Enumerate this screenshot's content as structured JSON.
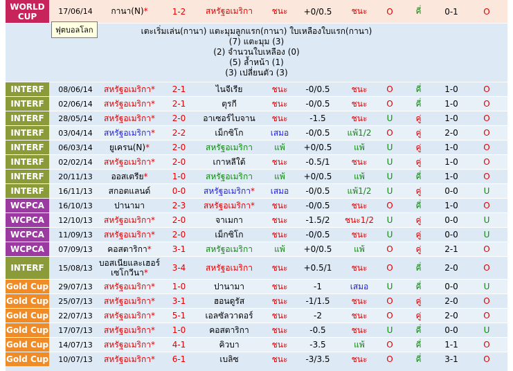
{
  "colors": {
    "world_cup": "#c8245c",
    "interf": "#8c9b3a",
    "wcpca": "#9b3aa0",
    "gold_cup": "#f08c28"
  },
  "tooltip": "ฟุตบอลโลก",
  "first": {
    "league": "WORLD CUP",
    "date": "17/06/14",
    "home": "กานา(N)",
    "score": "1-2",
    "away": "สหรัฐอเมริกา",
    "res": "ชนะ",
    "hcap": "+0/0.5",
    "hres": "ชนะ",
    "ou": "O",
    "ouw": "คี่",
    "ht": "0-1",
    "fr": "O"
  },
  "detail": [
    "เตะเริ่มเล่น(กานา)  แตะมุมลูกแรก(กานา)  ใบเหลืองใบแรก(กานา)",
    "(7) แตะมุม (3)",
    "(2) จำนวนใบเหลือง (0)",
    "(5) ล้ำหน้า (1)",
    "(3) เปลี่ยนตัว (3)"
  ],
  "rows": [
    {
      "league": "INTERF",
      "date": "08/06/14",
      "home": "สหรัฐอเมริกา",
      "home_star": "*",
      "score": "2-1",
      "away": "ไนจีเรีย",
      "res": "ชนะ",
      "hcap": "-0/0.5",
      "hres": "ชนะ",
      "ou": "O",
      "ouw": "คี่",
      "ht": "1-0",
      "fr": "O"
    },
    {
      "league": "INTERF",
      "date": "02/06/14",
      "home": "สหรัฐอเมริกา",
      "home_star": "*",
      "score": "2-1",
      "away": "ตุรกี",
      "res": "ชนะ",
      "hcap": "-0/0.5",
      "hres": "ชนะ",
      "ou": "O",
      "ouw": "คี่",
      "ht": "1-0",
      "fr": "O"
    },
    {
      "league": "INTERF",
      "date": "28/05/14",
      "home": "สหรัฐอเมริกา",
      "home_star": "*",
      "score": "2-0",
      "away": "อาเซอร์ไบจาน",
      "res": "ชนะ",
      "hcap": "-1.5",
      "hres": "ชนะ",
      "ou": "U",
      "ouw": "คู่",
      "ht": "1-0",
      "fr": "O"
    },
    {
      "league": "INTERF",
      "date": "03/04/14",
      "home": "สหรัฐอเมริกา",
      "home_star": "*",
      "score": "2-2",
      "away": "เม็กซิโก",
      "res": "เสมอ",
      "hcap": "-0/0.5",
      "hres": "แพ้1/2",
      "ou": "O",
      "ouw": "คู่",
      "ht": "2-0",
      "fr": "O"
    },
    {
      "league": "INTERF",
      "date": "06/03/14",
      "home": "ยูเครน(N)",
      "home_star": "*",
      "score": "2-0",
      "away": "สหรัฐอเมริกา",
      "res": "แพ้",
      "hcap": "+0/0.5",
      "hres": "แพ้",
      "ou": "U",
      "ouw": "คู่",
      "ht": "1-0",
      "fr": "O"
    },
    {
      "league": "INTERF",
      "date": "02/02/14",
      "home": "สหรัฐอเมริกา",
      "home_star": "*",
      "score": "2-0",
      "away": "เกาหลีใต้",
      "res": "ชนะ",
      "hcap": "-0.5/1",
      "hres": "ชนะ",
      "ou": "U",
      "ouw": "คู่",
      "ht": "1-0",
      "fr": "O"
    },
    {
      "league": "INTERF",
      "date": "20/11/13",
      "home": "ออสเตรีย",
      "home_star": "*",
      "score": "1-0",
      "away": "สหรัฐอเมริกา",
      "res": "แพ้",
      "hcap": "+0/0.5",
      "hres": "แพ้",
      "ou": "U",
      "ouw": "คี่",
      "ht": "1-0",
      "fr": "O"
    },
    {
      "league": "INTERF",
      "date": "16/11/13",
      "home": "สกอตแลนด์",
      "home_star": "",
      "score": "0-0",
      "away": "สหรัฐอเมริกา",
      "away_star": "*",
      "res": "เสมอ",
      "hcap": "-0/0.5",
      "hres": "แพ้1/2",
      "ou": "U",
      "ouw": "คู่",
      "ht": "0-0",
      "fr": "U"
    },
    {
      "league": "WCPCA",
      "date": "16/10/13",
      "home": "ปานามา",
      "home_star": "",
      "score": "2-3",
      "away": "สหรัฐอเมริกา",
      "away_star": "*",
      "res": "ชนะ",
      "hcap": "-0/0.5",
      "hres": "ชนะ",
      "ou": "O",
      "ouw": "คี่",
      "ht": "1-0",
      "fr": "O"
    },
    {
      "league": "WCPCA",
      "date": "12/10/13",
      "home": "สหรัฐอเมริกา",
      "home_star": "*",
      "score": "2-0",
      "away": "จาเมกา",
      "res": "ชนะ",
      "hcap": "-1.5/2",
      "hres": "ชนะ1/2",
      "ou": "U",
      "ouw": "คู่",
      "ht": "0-0",
      "fr": "U"
    },
    {
      "league": "WCPCA",
      "date": "11/09/13",
      "home": "สหรัฐอเมริกา",
      "home_star": "*",
      "score": "2-0",
      "away": "เม็กซิโก",
      "res": "ชนะ",
      "hcap": "-0/0.5",
      "hres": "ชนะ",
      "ou": "U",
      "ouw": "คู่",
      "ht": "0-0",
      "fr": "U"
    },
    {
      "league": "WCPCA",
      "date": "07/09/13",
      "home": "คอสตาริกา",
      "home_star": "*",
      "score": "3-1",
      "away": "สหรัฐอเมริกา",
      "res": "แพ้",
      "hcap": "+0/0.5",
      "hres": "แพ้",
      "ou": "O",
      "ouw": "คู่",
      "ht": "2-1",
      "fr": "O"
    },
    {
      "league": "INTERF",
      "date": "15/08/13",
      "home": "บอสเนียและเฮอร์เซโกวีนา",
      "home_star": "*",
      "score": "3-4",
      "away": "สหรัฐอเมริกา",
      "res": "ชนะ",
      "hcap": "+0.5/1",
      "hres": "ชนะ",
      "ou": "O",
      "ouw": "คี่",
      "ht": "2-0",
      "fr": "O",
      "tall": true
    },
    {
      "league": "Gold Cup",
      "date": "29/07/13",
      "home": "สหรัฐอเมริกา",
      "home_star": "*",
      "score": "1-0",
      "away": "ปานามา",
      "res": "ชนะ",
      "hcap": "-1",
      "hres": "เสมอ",
      "ou": "U",
      "ouw": "คี่",
      "ht": "0-0",
      "fr": "U"
    },
    {
      "league": "Gold Cup",
      "date": "25/07/13",
      "home": "สหรัฐอเมริกา",
      "home_star": "*",
      "score": "3-1",
      "away": "ฮอนดูรัส",
      "res": "ชนะ",
      "hcap": "-1/1.5",
      "hres": "ชนะ",
      "ou": "O",
      "ouw": "คู่",
      "ht": "2-0",
      "fr": "O"
    },
    {
      "league": "Gold Cup",
      "date": "22/07/13",
      "home": "สหรัฐอเมริกา",
      "home_star": "*",
      "score": "5-1",
      "away": "เอลซัลวาดอร์",
      "res": "ชนะ",
      "hcap": "-2",
      "hres": "ชนะ",
      "ou": "O",
      "ouw": "คู่",
      "ht": "2-0",
      "fr": "O"
    },
    {
      "league": "Gold Cup",
      "date": "17/07/13",
      "home": "สหรัฐอเมริกา",
      "home_star": "*",
      "score": "1-0",
      "away": "คอสตาริกา",
      "res": "ชนะ",
      "hcap": "-0.5",
      "hres": "ชนะ",
      "ou": "U",
      "ouw": "คี่",
      "ht": "0-0",
      "fr": "U"
    },
    {
      "league": "Gold Cup",
      "date": "14/07/13",
      "home": "สหรัฐอเมริกา",
      "home_star": "*",
      "score": "4-1",
      "away": "คิวบา",
      "res": "ชนะ",
      "hcap": "-3.5",
      "hres": "แพ้",
      "ou": "O",
      "ouw": "คี่",
      "ht": "1-1",
      "fr": "O"
    },
    {
      "league": "Gold Cup",
      "date": "10/07/13",
      "home": "สหรัฐอเมริกา",
      "home_star": "*",
      "score": "6-1",
      "away": "เบลิซ",
      "res": "ชนะ",
      "hcap": "-3/3.5",
      "hres": "ชนะ",
      "ou": "O",
      "ouw": "คี่",
      "ht": "3-1",
      "fr": "O"
    }
  ]
}
